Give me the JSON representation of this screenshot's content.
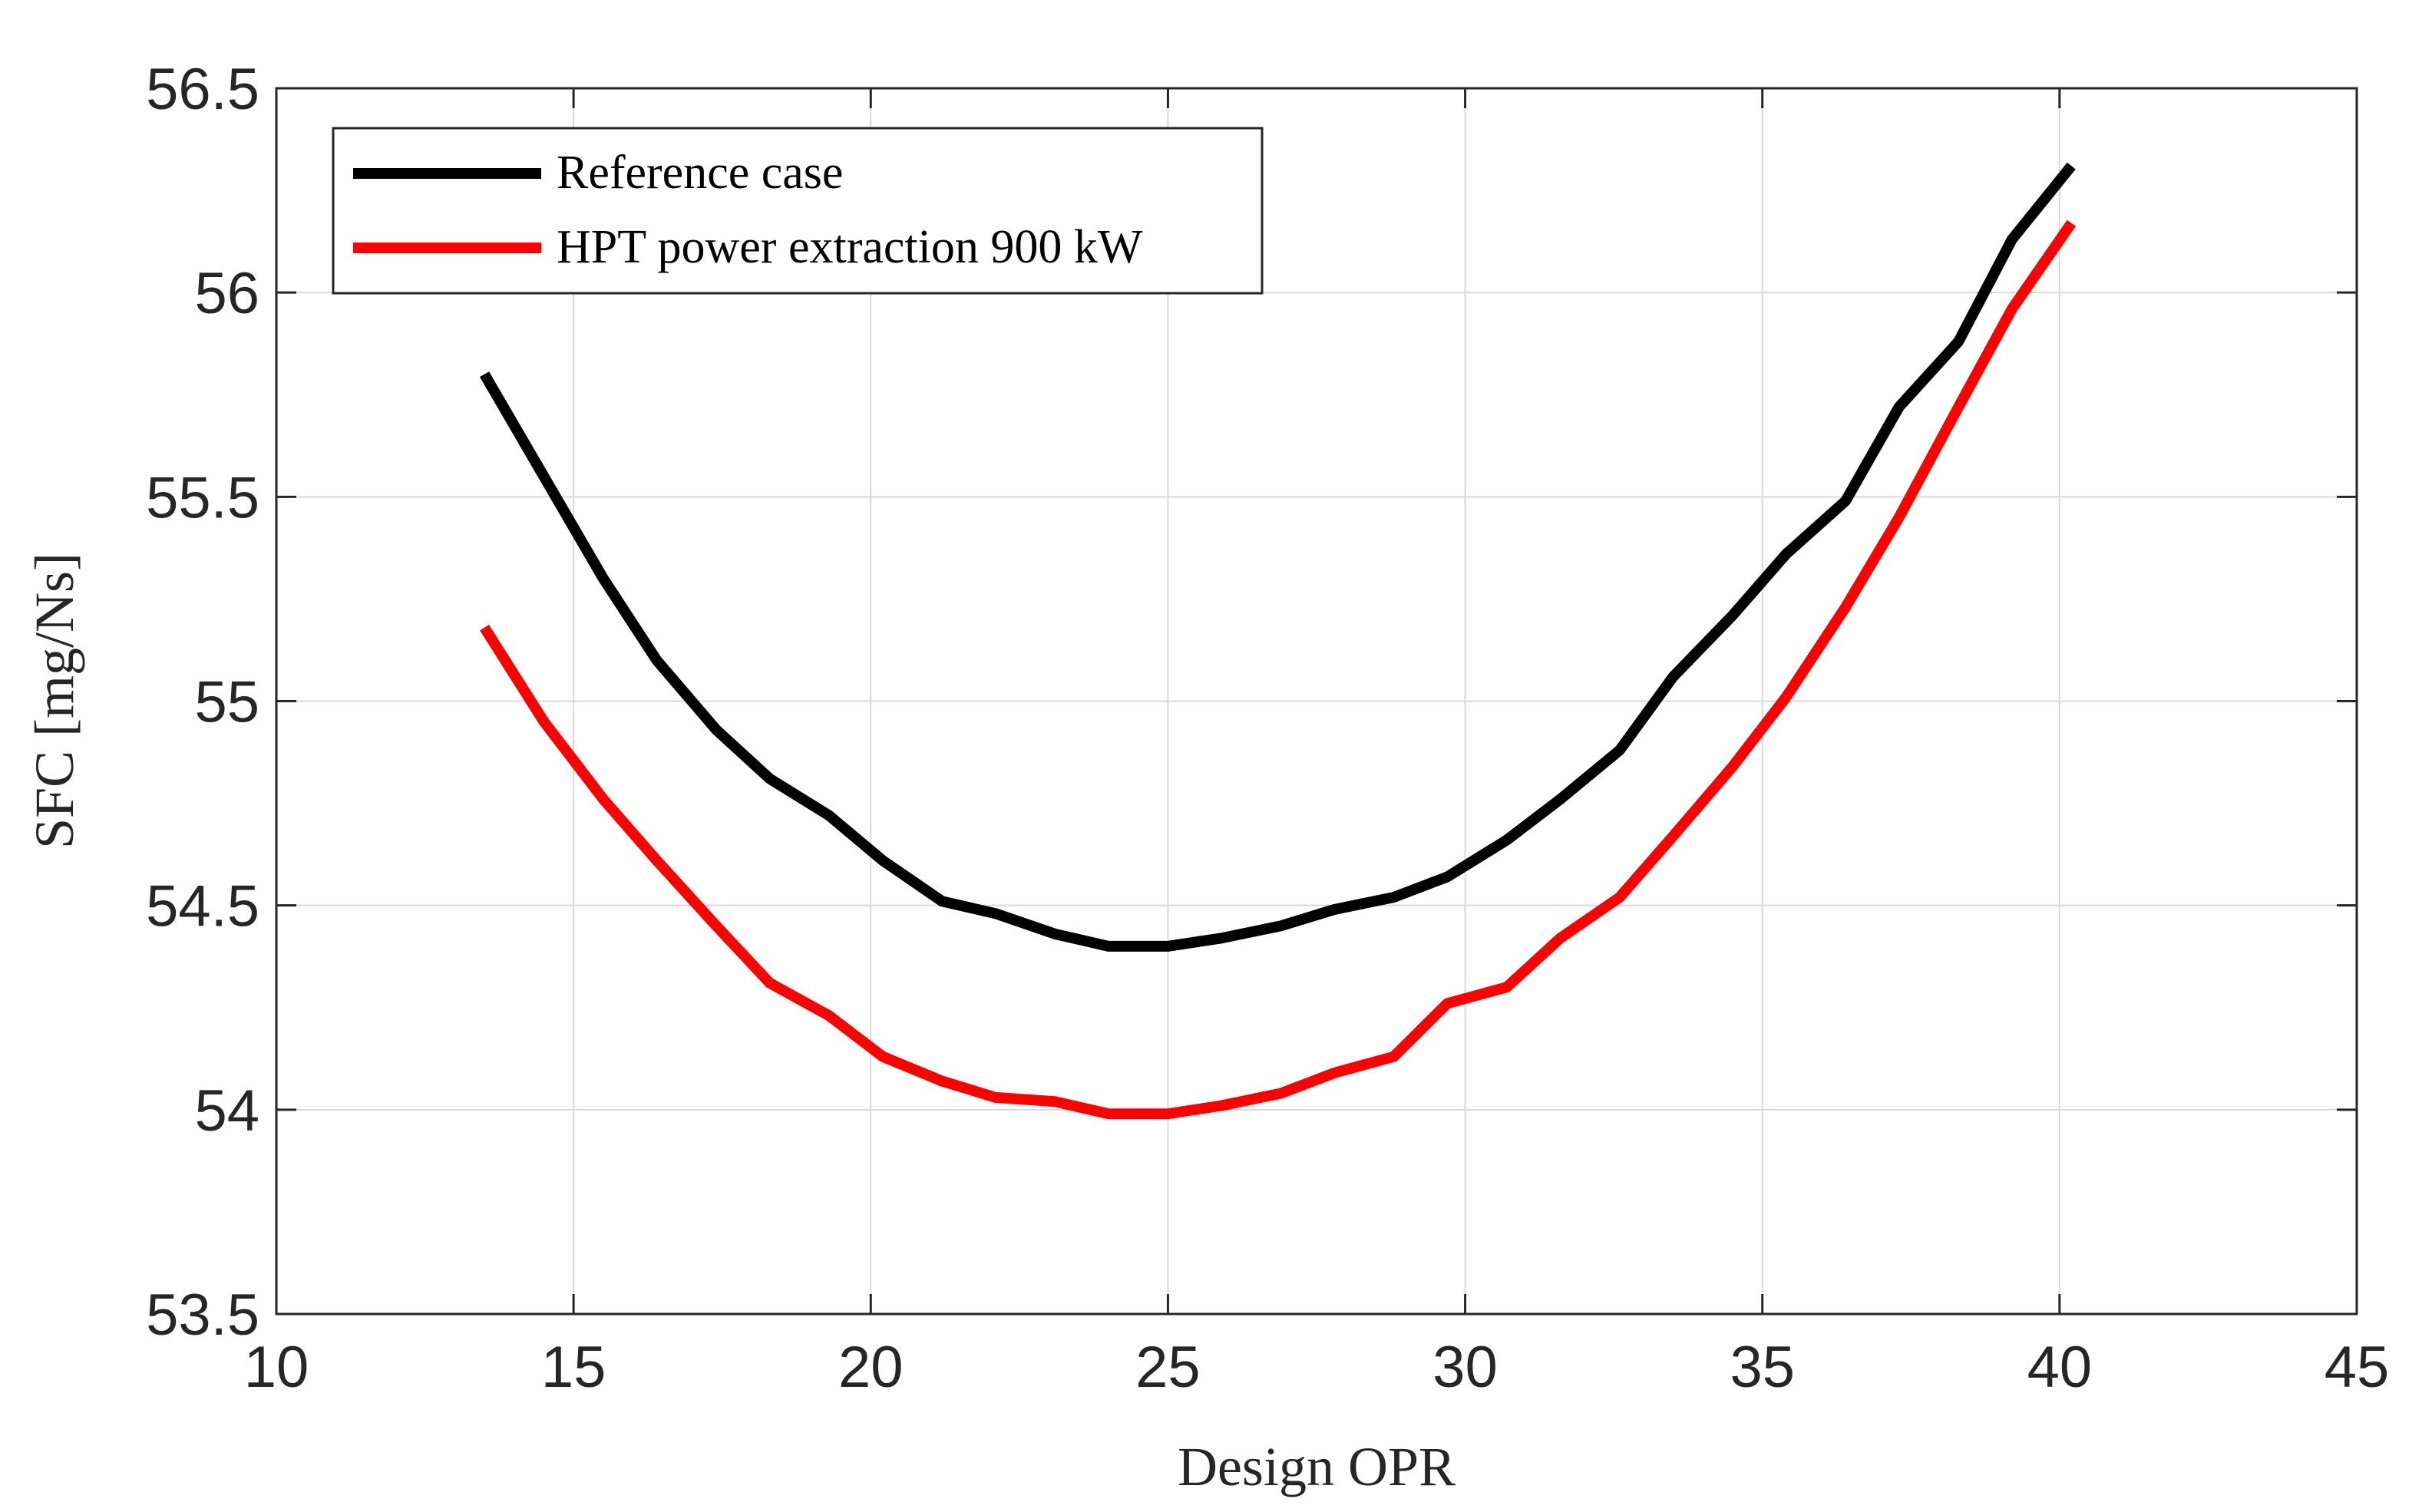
{
  "chart_data": {
    "type": "line",
    "title": "",
    "xlabel": "Design OPR",
    "ylabel": "SFC [mg/Ns]",
    "xlim": [
      10,
      45
    ],
    "ylim": [
      53.5,
      56.5
    ],
    "xticks": [
      10,
      15,
      20,
      25,
      30,
      35,
      40,
      45
    ],
    "yticks": [
      53.5,
      54,
      54.5,
      55,
      55.5,
      56,
      56.5
    ],
    "xtick_labels": [
      "10",
      "15",
      "20",
      "25",
      "30",
      "35",
      "40",
      "45"
    ],
    "ytick_labels": [
      "53.5",
      "54",
      "54.5",
      "55",
      "55.5",
      "56",
      "56.5"
    ],
    "grid": true,
    "legend_position": "top-left",
    "series": [
      {
        "name": "Reference case",
        "color": "#000000",
        "x": [
          13.5,
          14.5,
          15.5,
          16.4,
          17.4,
          18.3,
          19.3,
          20.2,
          21.2,
          22.1,
          23.1,
          24.0,
          25.0,
          25.9,
          26.9,
          27.8,
          28.8,
          29.7,
          30.7,
          31.6,
          32.6,
          33.5,
          34.5,
          35.4,
          36.4,
          37.3,
          38.3,
          39.2,
          40.2
        ],
        "y": [
          55.8,
          55.55,
          55.3,
          55.1,
          54.93,
          54.81,
          54.72,
          54.61,
          54.51,
          54.48,
          54.43,
          54.4,
          54.4,
          54.42,
          54.45,
          54.49,
          54.52,
          54.57,
          54.66,
          54.76,
          54.88,
          55.06,
          55.21,
          55.36,
          55.49,
          55.72,
          55.88,
          56.13,
          56.31
        ]
      },
      {
        "name": "HPT power extraction 900 kW",
        "color": "#ff0000",
        "x": [
          13.5,
          14.5,
          15.5,
          16.4,
          17.4,
          18.3,
          19.3,
          20.2,
          21.2,
          22.1,
          23.1,
          24.0,
          25.0,
          25.9,
          26.9,
          27.8,
          28.8,
          29.7,
          30.7,
          31.6,
          32.6,
          33.5,
          34.5,
          35.4,
          36.4,
          37.3,
          38.3,
          39.2,
          40.2
        ],
        "y": [
          55.18,
          54.95,
          54.76,
          54.61,
          54.45,
          54.31,
          54.23,
          54.13,
          54.07,
          54.03,
          54.02,
          53.99,
          53.99,
          54.01,
          54.04,
          54.09,
          54.13,
          54.26,
          54.3,
          54.42,
          54.52,
          54.67,
          54.84,
          55.01,
          55.23,
          55.45,
          55.72,
          55.96,
          56.17
        ]
      }
    ]
  }
}
